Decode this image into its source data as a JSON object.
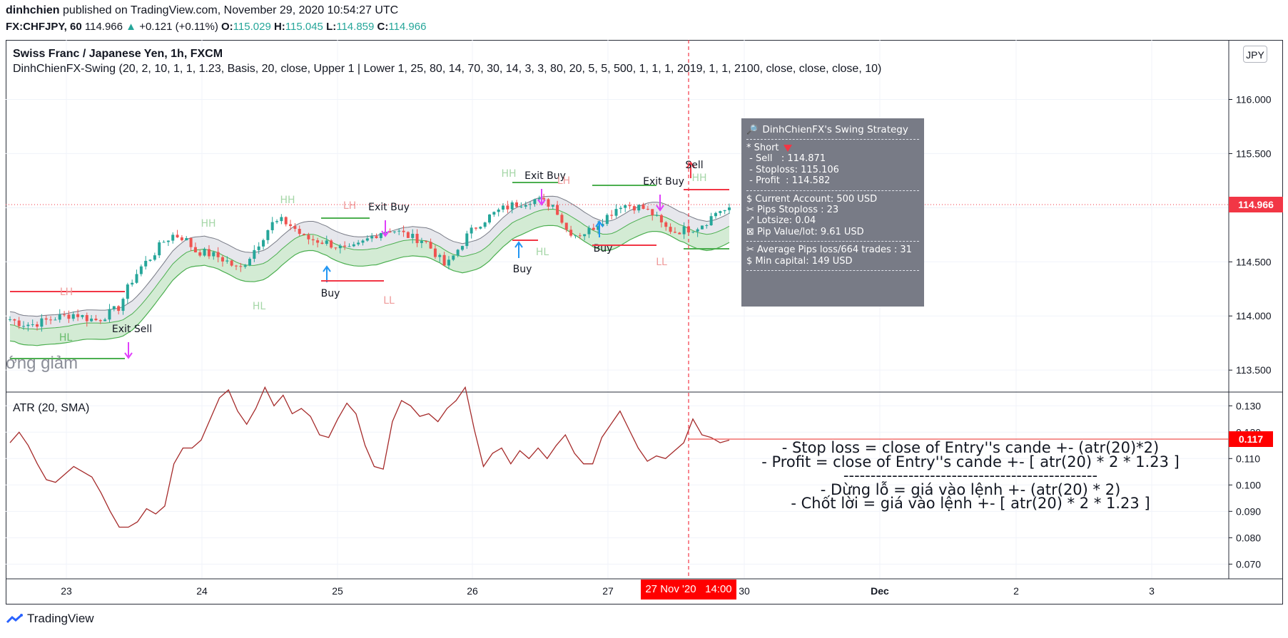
{
  "header": {
    "author": "dinhchien",
    "published": "published on TradingView.com, November 29, 2020 10:54:27 UTC",
    "symbol": "FX:CHFJPY, 60",
    "last": "114.966",
    "change": "+0.121 (+0.11%)",
    "o_label": "O:",
    "o": "115.029",
    "h_label": "H:",
    "h": "115.045",
    "l_label": "L:",
    "l": "114.859",
    "c_label": "C:",
    "c": "114.966"
  },
  "legend": {
    "title": "Swiss Franc / Japanese Yen, 1h, FXCM",
    "indicator": "DinhChienFX-Swing (20, 2, 10, 1, 1, 1.23, Basis, 20, close, Upper 1 | Lower 1, 25, 80, 14, 70, 30, 14, 3, 3, 80, 20, 5, 5, 500, 1, 1, 1, 2019, 1, 1, 2100, close, close, close, 10)",
    "atr": "ATR (20, SMA)",
    "currency": "JPY"
  },
  "tooltip": {
    "title": "DinhChienFX's Swing Strategy",
    "lines1": [
      "* Short"
    ],
    "lines2": [
      " - Sell   : 114.871",
      " - Stoploss: 115.106",
      " - Profit  : 114.582"
    ],
    "lines3": [
      "$ Current Account: 500 USD",
      "✂ Pips Stoploss : 23",
      "⤢ Lotsize: 0.04",
      "⊠ Pip Value/lot: 9.61 USD"
    ],
    "lines4": [
      "✂ Average Pips loss/664 trades : 31",
      "$ Min capital: 149 USD"
    ]
  },
  "note": {
    "l1": "- Stop loss = close of Entry''s cande +- (atr(20)*2)",
    "l2": "- Profit = close of Entry''s cande +- [ atr(20) * 2 * 1.23 ]",
    "l3": "-----------------------------------------------",
    "l4": "- Dừng lỗ = giá vào lệnh +- (atr(20) * 2)",
    "l5": "- Chốt lời = giá vào lệnh +- [ atr(20) * 2 * 1.23 ]"
  },
  "watermark": "ớng giảm",
  "crosshair": {
    "date": "27 Nov '20",
    "time": "14:00"
  },
  "footer": {
    "brand": "TradingView"
  },
  "colors": {
    "up": "#26a69a",
    "down": "#ef5350",
    "atr": "#a52a2a",
    "price_line": "#f23645",
    "band": "#4caf50"
  },
  "chart_data": [
    {
      "type": "candlestick",
      "title": "Swiss Franc / Japanese Yen, 1h, FXCM",
      "x_ticks": [
        "23",
        "24",
        "25",
        "26",
        "27",
        "30",
        "Dec",
        "2",
        "3"
      ],
      "y_ticks": [
        "116.000",
        "115.500",
        "115.000",
        "114.500",
        "114.000",
        "113.500"
      ],
      "ylim": [
        113.33,
        116.26
      ],
      "last_price": "114.966",
      "close_path": [
        113.97,
        113.93,
        113.92,
        113.95,
        113.98,
        114.0,
        114.02,
        113.98,
        113.96,
        114.02,
        114.08,
        114.3,
        114.45,
        114.55,
        114.68,
        114.75,
        114.72,
        114.6,
        114.58,
        114.55,
        114.5,
        114.42,
        114.55,
        114.7,
        114.85,
        114.88,
        114.82,
        114.72,
        114.7,
        114.68,
        114.64,
        114.6,
        114.65,
        114.72,
        114.78,
        114.8,
        114.76,
        114.72,
        114.7,
        114.58,
        114.45,
        114.6,
        114.75,
        114.85,
        114.92,
        114.98,
        115.02,
        115.05,
        115.08,
        115.05,
        115.02,
        114.8,
        114.75,
        114.78,
        114.86,
        114.94,
        115.03,
        115.02,
        115.0,
        114.94,
        114.82,
        114.78,
        114.8,
        114.82,
        114.88,
        114.98,
        114.97
      ],
      "signals": [
        {
          "label": "Exit Sell",
          "type": "exit"
        },
        {
          "label": "Buy",
          "type": "buy"
        },
        {
          "label": "Exit Buy",
          "type": "exit"
        },
        {
          "label": "Buy",
          "type": "buy"
        },
        {
          "label": "Exit Buy",
          "type": "exit"
        },
        {
          "label": "Buy",
          "type": "buy"
        },
        {
          "label": "Exit Buy",
          "type": "exit"
        },
        {
          "label": "Sell",
          "type": "sell"
        }
      ],
      "swing_labels": [
        "HH",
        "HL",
        "LH",
        "LL"
      ]
    },
    {
      "type": "line",
      "title": "ATR (20, SMA)",
      "y_ticks": [
        "0.130",
        "0.120",
        "0.110",
        "0.100",
        "0.090",
        "0.080",
        "0.070"
      ],
      "ylim": [
        0.0655,
        0.1325
      ],
      "last_value": "0.117",
      "values": [
        0.116,
        0.12,
        0.115,
        0.108,
        0.102,
        0.101,
        0.104,
        0.107,
        0.105,
        0.103,
        0.097,
        0.09,
        0.084,
        0.084,
        0.086,
        0.091,
        0.089,
        0.092,
        0.108,
        0.114,
        0.114,
        0.117,
        0.125,
        0.133,
        0.136,
        0.128,
        0.123,
        0.129,
        0.137,
        0.13,
        0.134,
        0.127,
        0.129,
        0.126,
        0.119,
        0.118,
        0.125,
        0.131,
        0.127,
        0.115,
        0.107,
        0.106,
        0.124,
        0.132,
        0.13,
        0.126,
        0.127,
        0.124,
        0.129,
        0.132,
        0.137,
        0.121,
        0.107,
        0.112,
        0.114,
        0.108,
        0.113,
        0.11,
        0.114,
        0.11,
        0.115,
        0.119,
        0.112,
        0.108,
        0.108,
        0.118,
        0.123,
        0.128,
        0.121,
        0.114,
        0.109,
        0.111,
        0.11,
        0.113,
        0.116,
        0.125,
        0.119,
        0.118,
        0.116,
        0.117
      ]
    }
  ]
}
